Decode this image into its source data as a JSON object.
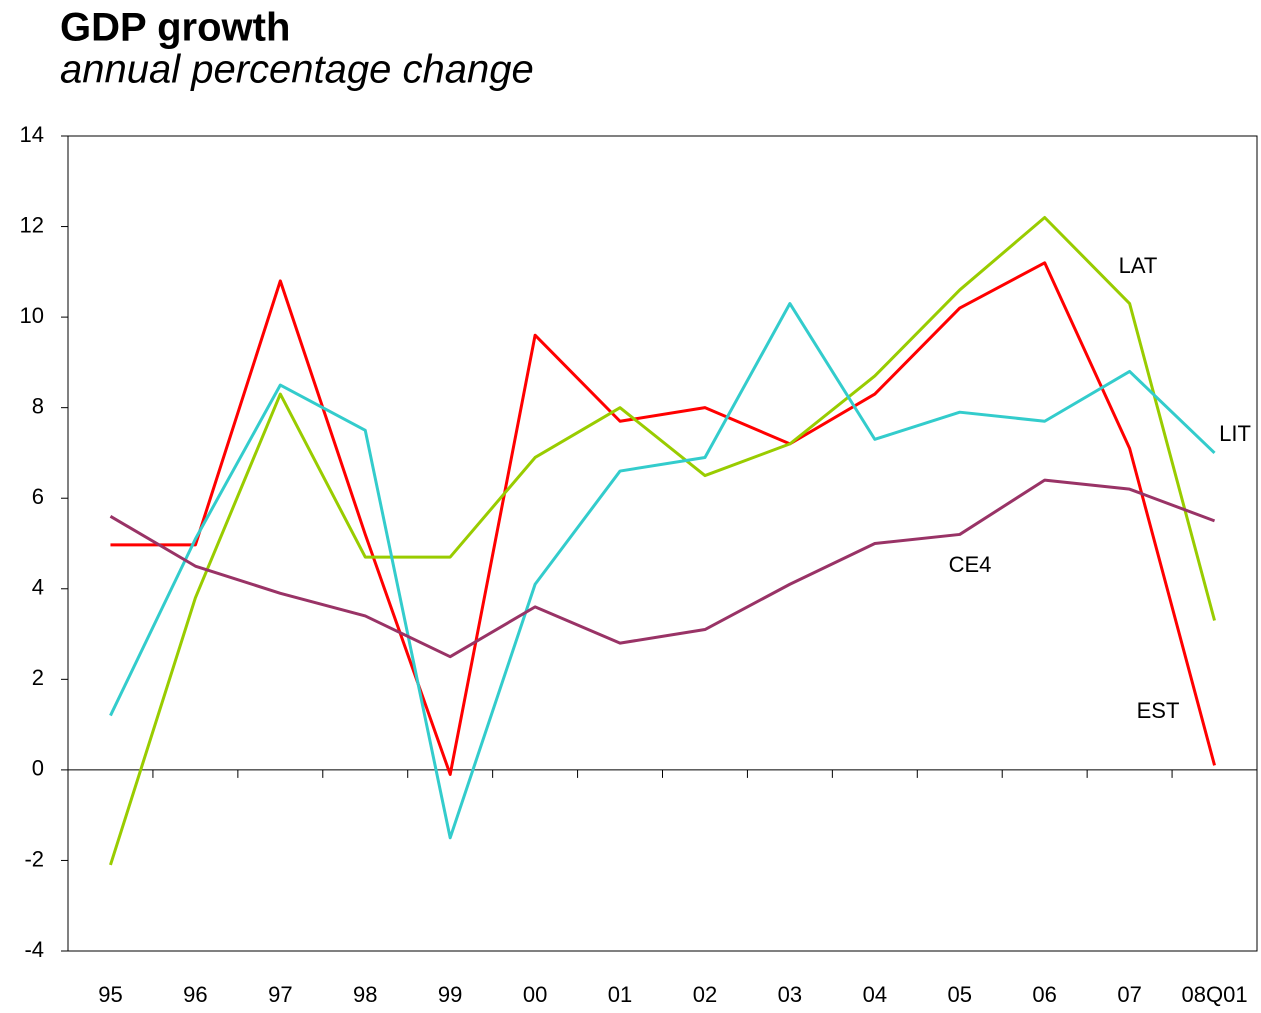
{
  "chart_data": {
    "type": "line",
    "title": "GDP growth",
    "subtitle": "annual percentage change",
    "categories": [
      "95",
      "96",
      "97",
      "98",
      "99",
      "00",
      "01",
      "02",
      "03",
      "04",
      "05",
      "06",
      "07",
      "08Q01"
    ],
    "series": [
      {
        "name": "EST",
        "color": "#ff0000",
        "values": [
          4.97,
          4.97,
          10.8,
          5.2,
          -0.1,
          9.6,
          7.7,
          8.0,
          7.2,
          8.3,
          10.2,
          11.2,
          7.1,
          0.1
        ]
      },
      {
        "name": "LAT",
        "color": "#99cc00",
        "values": [
          -2.1,
          3.8,
          8.3,
          4.7,
          4.7,
          6.9,
          8.0,
          6.5,
          7.2,
          8.7,
          10.6,
          12.2,
          10.3,
          3.3
        ]
      },
      {
        "name": "LIT",
        "color": "#33cccc",
        "values": [
          1.2,
          5.1,
          8.5,
          7.5,
          -1.5,
          4.1,
          6.6,
          6.9,
          10.3,
          7.3,
          7.9,
          7.7,
          8.8,
          7.0
        ]
      },
      {
        "name": "CE4",
        "color": "#993366",
        "values": [
          5.6,
          4.5,
          3.9,
          3.4,
          2.5,
          3.6,
          2.8,
          3.1,
          4.1,
          5.0,
          5.2,
          6.4,
          6.2,
          5.5
        ]
      }
    ],
    "ylim": [
      -4,
      14
    ],
    "yticks": [
      -4,
      -2,
      0,
      2,
      4,
      6,
      8,
      10,
      12,
      14
    ],
    "grid": false
  }
}
